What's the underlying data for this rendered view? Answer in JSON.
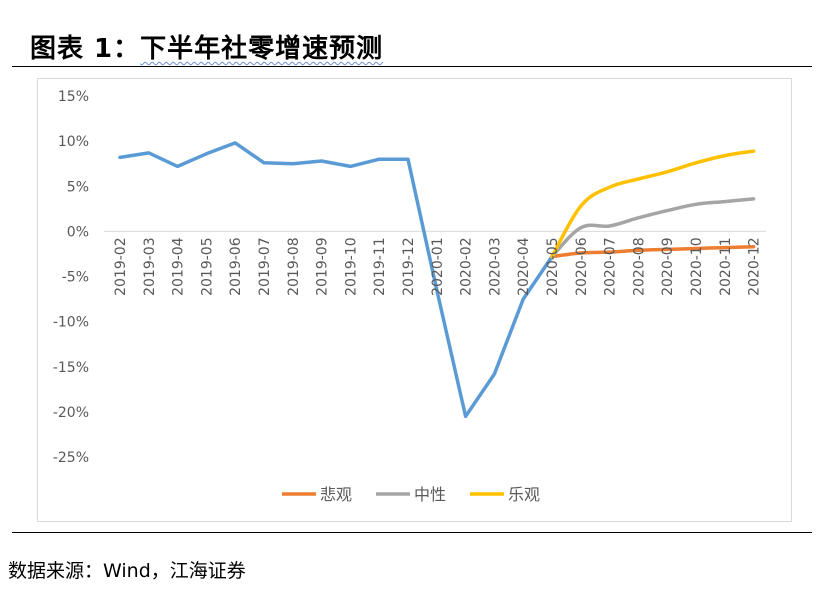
{
  "figure": {
    "title_prefix": "图表 1：",
    "title_main": "下半年社零增速预测",
    "source": "数据来源：Wind，江海证券"
  },
  "chart_data": {
    "type": "line",
    "title": "",
    "xlabel": "",
    "ylabel": "",
    "categories": [
      "2019-02",
      "2019-03",
      "2019-04",
      "2019-05",
      "2019-06",
      "2019-07",
      "2019-08",
      "2019-09",
      "2019-10",
      "2019-11",
      "2019-12",
      "2020-01",
      "2020-02",
      "2020-03",
      "2020-04",
      "2020-05",
      "2020-06",
      "2020-07",
      "2020-08",
      "2020-09",
      "2020-10",
      "2020-11",
      "2020-12"
    ],
    "y_ticks": [
      "15%",
      "10%",
      "5%",
      "0%",
      "-5%",
      "-10%",
      "-15%",
      "-20%",
      "-25%"
    ],
    "ylim": [
      -25,
      15
    ],
    "grid": false,
    "legend_position": "bottom",
    "historical": {
      "color": "#5b9bd5",
      "values": [
        8.2,
        8.7,
        7.2,
        8.6,
        9.8,
        7.6,
        7.5,
        7.8,
        7.2,
        8.0,
        8.0,
        -6.5,
        -20.5,
        -15.8,
        -7.5,
        -2.8,
        null,
        null,
        null,
        null,
        null,
        null,
        null
      ]
    },
    "series": [
      {
        "name": "悲观",
        "color": "#ed7d31",
        "values": [
          null,
          null,
          null,
          null,
          null,
          null,
          null,
          null,
          null,
          null,
          null,
          null,
          null,
          null,
          null,
          -2.8,
          -2.4,
          -2.3,
          -2.1,
          -2.0,
          -1.9,
          -1.8,
          -1.7
        ]
      },
      {
        "name": "中性",
        "color": "#a5a5a5",
        "values": [
          null,
          null,
          null,
          null,
          null,
          null,
          null,
          null,
          null,
          null,
          null,
          null,
          null,
          null,
          null,
          -2.8,
          0.4,
          0.6,
          1.5,
          2.3,
          3.0,
          3.3,
          3.6
        ]
      },
      {
        "name": "乐观",
        "color": "#ffc000",
        "values": [
          null,
          null,
          null,
          null,
          null,
          null,
          null,
          null,
          null,
          null,
          null,
          null,
          null,
          null,
          null,
          -2.8,
          2.8,
          4.9,
          5.8,
          6.6,
          7.6,
          8.4,
          8.9
        ]
      }
    ]
  }
}
